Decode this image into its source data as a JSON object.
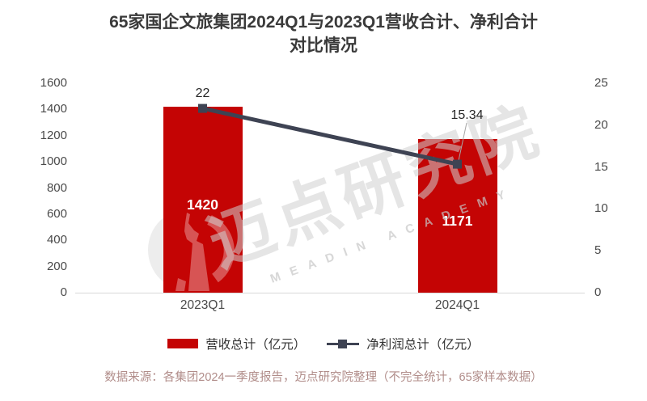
{
  "title": {
    "line1": "65家国企文旅集团2024Q1与2023Q1营收合计、净利合计",
    "line2": "对比情况"
  },
  "footer": "数据来源：各集团2024一季度报告，迈点研究院整理（不完全统计，65家样本数据）",
  "watermark": {
    "cn": "迈点研究院",
    "en": "MEADIN ACADEMY",
    "logo": "meadin-tower-logo"
  },
  "colors": {
    "bar": "#c40404",
    "line": "#3e4353",
    "axis_text": "#4a4a4a",
    "title_text": "#3a3a3a",
    "footer_text": "#b18d8a",
    "leader": "#a6a6a6"
  },
  "legend": {
    "items": [
      {
        "label": "营收总计（亿元）",
        "swatch": "bar"
      },
      {
        "label": "净利润总计（亿元）",
        "swatch": "line"
      }
    ]
  },
  "chart_data": {
    "type": "bar",
    "subtype": "bar+line combo",
    "title": "65家国企文旅集团2024Q1与2023Q1营收合计、净利合计对比情况",
    "categories": [
      "2023Q1",
      "2024Q1"
    ],
    "series": [
      {
        "name": "营收总计（亿元）",
        "type": "bar",
        "axis": "left",
        "values": [
          1420,
          1171
        ],
        "labels": [
          "1420",
          "1171"
        ]
      },
      {
        "name": "净利润总计（亿元）",
        "type": "line",
        "axis": "right",
        "values": [
          22,
          15.34
        ],
        "labels": [
          "22",
          "15.34"
        ]
      }
    ],
    "left_axis": {
      "min": 0,
      "max": 1600,
      "ticks": [
        0,
        200,
        400,
        600,
        800,
        1000,
        1200,
        1400,
        1600
      ]
    },
    "right_axis": {
      "min": 0,
      "max": 25,
      "ticks": [
        0,
        5,
        10,
        15,
        20,
        25
      ]
    },
    "grid": false,
    "legend_position": "bottom"
  }
}
